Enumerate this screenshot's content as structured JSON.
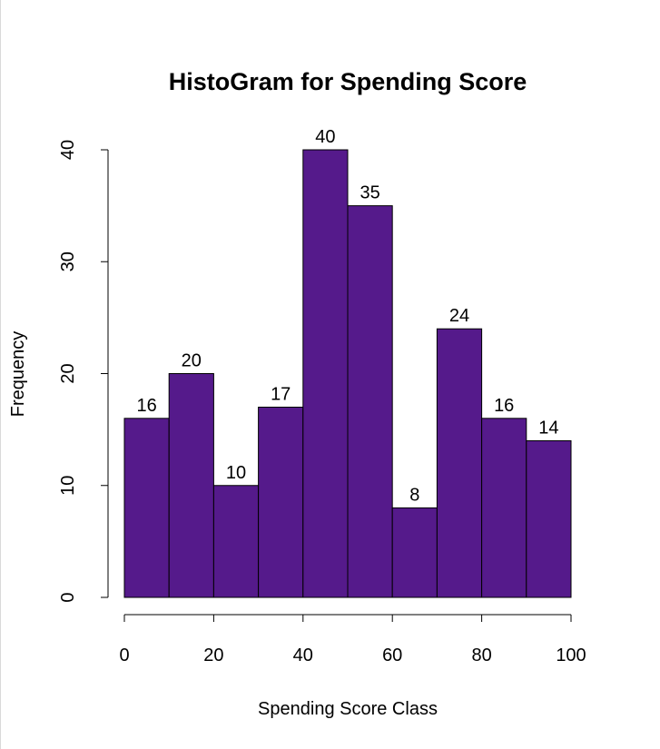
{
  "chart_data": {
    "type": "bar",
    "title": "HistoGram for Spending Score",
    "xlabel": "Spending Score Class",
    "ylabel": "Frequency",
    "bins": [
      {
        "start": 0,
        "end": 10,
        "value": 16
      },
      {
        "start": 10,
        "end": 20,
        "value": 20
      },
      {
        "start": 20,
        "end": 30,
        "value": 10
      },
      {
        "start": 30,
        "end": 40,
        "value": 17
      },
      {
        "start": 40,
        "end": 50,
        "value": 40
      },
      {
        "start": 50,
        "end": 60,
        "value": 35
      },
      {
        "start": 60,
        "end": 70,
        "value": 8
      },
      {
        "start": 70,
        "end": 80,
        "value": 24
      },
      {
        "start": 80,
        "end": 90,
        "value": 16
      },
      {
        "start": 90,
        "end": 100,
        "value": 14
      }
    ],
    "data_labels": [
      "16",
      "20",
      "10",
      "17",
      "40",
      "35",
      "8",
      "24",
      "16",
      "14"
    ],
    "xlim": [
      0,
      100
    ],
    "ylim": [
      0,
      40
    ],
    "x_ticks": [
      "0",
      "20",
      "40",
      "60",
      "80",
      "100"
    ],
    "y_ticks": [
      "0",
      "10",
      "20",
      "30",
      "40"
    ],
    "bar_color": "#551A8B",
    "grid": false,
    "legend": "none"
  }
}
